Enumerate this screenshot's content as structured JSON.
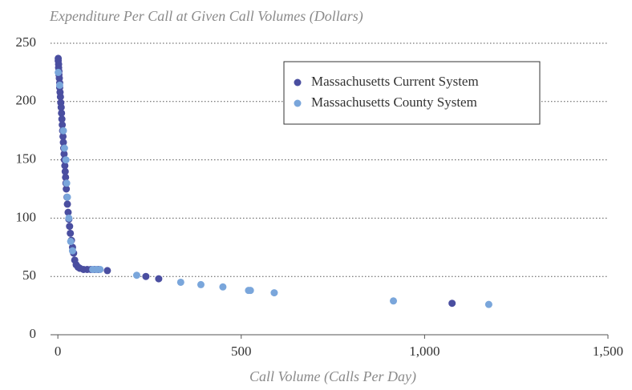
{
  "chart_data": {
    "type": "scatter",
    "title": "Expenditure Per Call at Given Call Volumes (Dollars)",
    "x_label": "Call Volume (Calls Per Day)",
    "xlim": [
      -20,
      1500
    ],
    "ylim": [
      0,
      250
    ],
    "xticks": [
      0,
      500,
      {
        "value": 1000,
        "label": "1,000"
      },
      {
        "value": 1500,
        "label": "1,500"
      }
    ],
    "yticks": [
      0,
      50,
      100,
      150,
      200,
      250
    ],
    "grid": true,
    "legend": "upper right",
    "series": [
      {
        "name": "Massachusetts Current System",
        "color": "#4a4ea0",
        "x": [
          1,
          1,
          2,
          2,
          3,
          3,
          4,
          5,
          5,
          6,
          7,
          8,
          9,
          10,
          11,
          12,
          13,
          14,
          15,
          16,
          17,
          18,
          19,
          20,
          21,
          22,
          23,
          25,
          26,
          28,
          30,
          32,
          34,
          37,
          40,
          43,
          46,
          50,
          55,
          60,
          70,
          80,
          90,
          100,
          110,
          135,
          240,
          275,
          1075
        ],
        "values": [
          237,
          235,
          232,
          229,
          226,
          223,
          220,
          216,
          212,
          208,
          204,
          199,
          195,
          190,
          185,
          180,
          175,
          170,
          165,
          160,
          155,
          150,
          145,
          140,
          135,
          130,
          125,
          118,
          112,
          105,
          99,
          93,
          87,
          81,
          75,
          70,
          64,
          60,
          58,
          57,
          56,
          56,
          56,
          56,
          56,
          55,
          50,
          48,
          27
        ]
      },
      {
        "name": "Massachusetts County System",
        "color": "#7aa6db",
        "x": [
          1,
          5,
          15,
          18,
          22,
          24,
          26,
          30,
          35,
          40,
          95,
          105,
          115,
          215,
          335,
          390,
          450,
          520,
          525,
          590,
          915,
          1175
        ],
        "values": [
          225,
          214,
          175,
          160,
          150,
          130,
          118,
          100,
          80,
          72,
          56,
          56,
          56,
          51,
          45,
          43,
          41,
          38,
          38,
          36,
          29,
          26
        ]
      }
    ]
  }
}
